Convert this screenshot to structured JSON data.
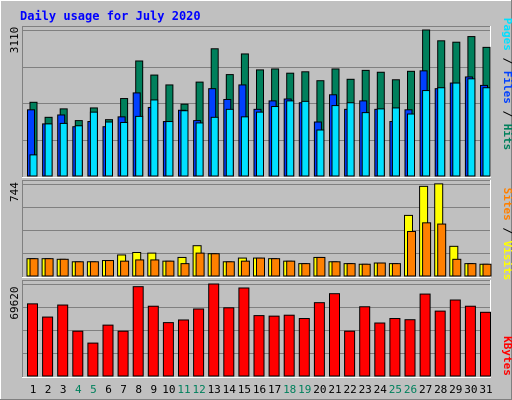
{
  "title": "Daily usage for July 2020",
  "colors": {
    "background": "#c0c0c0",
    "title": "#0000ff",
    "hits": "#00805c",
    "files": "#0040ff",
    "pages": "#00e0ff",
    "visits": "#ffff00",
    "sites": "#ff8000",
    "kbytes": "#ff0000",
    "weekend_label": "#00805c",
    "weekday_label": "#000000"
  },
  "chart_data": [
    {
      "type": "bar",
      "name": "hits-files-pages",
      "max_label": "3110",
      "ylim": [
        0,
        3110
      ],
      "legend": [
        "Pages",
        "Files",
        "Hits"
      ],
      "categories": [
        "1",
        "2",
        "3",
        "4",
        "5",
        "6",
        "7",
        "8",
        "9",
        "10",
        "11",
        "12",
        "13",
        "14",
        "15",
        "16",
        "17",
        "18",
        "19",
        "20",
        "21",
        "22",
        "23",
        "24",
        "25",
        "26",
        "27",
        "28",
        "29",
        "30",
        "31"
      ],
      "weekend_days": [
        "4",
        "5",
        "11",
        "12",
        "18",
        "19",
        "25",
        "26"
      ],
      "series": [
        {
          "name": "Hits",
          "values": [
            1570,
            1250,
            1430,
            1180,
            1450,
            1200,
            1650,
            2450,
            2150,
            1940,
            1530,
            2000,
            2710,
            2160,
            2600,
            2260,
            2280,
            2190,
            2220,
            2030,
            2280,
            2060,
            2250,
            2210,
            2050,
            2230,
            3110,
            2880,
            2850,
            2970,
            2740
          ]
        },
        {
          "name": "Files",
          "values": [
            1410,
            1110,
            1300,
            1050,
            1160,
            1050,
            1260,
            1770,
            1460,
            1160,
            1400,
            1180,
            1860,
            1630,
            1940,
            1420,
            1600,
            1640,
            1560,
            1150,
            1730,
            1420,
            1600,
            1420,
            1160,
            1410,
            2240,
            1860,
            1980,
            2110,
            1930
          ]
        },
        {
          "name": "Pages",
          "values": [
            450,
            1110,
            1120,
            1070,
            1360,
            1150,
            1140,
            1270,
            1620,
            1160,
            1390,
            1130,
            1250,
            1420,
            1260,
            1360,
            1480,
            1600,
            1590,
            980,
            1500,
            1560,
            1350,
            1430,
            1450,
            1320,
            1820,
            1880,
            1980,
            2070,
            1880
          ]
        }
      ]
    },
    {
      "type": "bar",
      "name": "visits-sites",
      "max_label": "744",
      "ylim": [
        0,
        744
      ],
      "legend": [
        "Sites",
        "Visits"
      ],
      "categories": [
        "1",
        "2",
        "3",
        "4",
        "5",
        "6",
        "7",
        "8",
        "9",
        "10",
        "11",
        "12",
        "13",
        "14",
        "15",
        "16",
        "17",
        "18",
        "19",
        "20",
        "21",
        "22",
        "23",
        "24",
        "25",
        "26",
        "27",
        "28",
        "29",
        "30",
        "31"
      ],
      "series": [
        {
          "name": "Visits",
          "values": [
            140,
            140,
            135,
            115,
            115,
            125,
            170,
            190,
            185,
            120,
            150,
            245,
            180,
            115,
            145,
            145,
            140,
            120,
            100,
            150,
            115,
            100,
            95,
            105,
            100,
            490,
            725,
            745,
            240,
            100,
            95
          ]
        },
        {
          "name": "Sites",
          "values": [
            140,
            140,
            135,
            115,
            115,
            125,
            120,
            130,
            130,
            120,
            100,
            185,
            180,
            115,
            120,
            145,
            140,
            120,
            100,
            150,
            115,
            100,
            95,
            105,
            100,
            360,
            430,
            420,
            135,
            100,
            95
          ]
        }
      ]
    },
    {
      "type": "bar",
      "name": "kbytes",
      "max_label": "69620",
      "ylim": [
        0,
        69620
      ],
      "legend": [
        "KBytes"
      ],
      "categories": [
        "1",
        "2",
        "3",
        "4",
        "5",
        "6",
        "7",
        "8",
        "9",
        "10",
        "11",
        "12",
        "13",
        "14",
        "15",
        "16",
        "17",
        "18",
        "19",
        "20",
        "21",
        "22",
        "23",
        "24",
        "25",
        "26",
        "27",
        "28",
        "29",
        "30",
        "31"
      ],
      "series": [
        {
          "name": "KBytes",
          "values": [
            54600,
            44600,
            53700,
            33900,
            24900,
            38500,
            33900,
            67600,
            52800,
            40400,
            42400,
            50700,
            69620,
            51600,
            66600,
            45700,
            45300,
            46000,
            43500,
            55500,
            62300,
            33900,
            52400,
            40100,
            43500,
            42600,
            62000,
            49100,
            57500,
            52800,
            48200
          ]
        }
      ]
    }
  ]
}
